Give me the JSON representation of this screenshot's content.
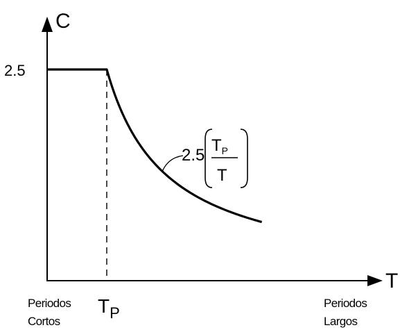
{
  "chart_data": {
    "type": "line",
    "title": "",
    "xlabel": "T",
    "ylabel": "C",
    "y_tick_label": "2.5",
    "plateau_value": 2.5,
    "x_tick": {
      "main": "T",
      "subscript": "P"
    },
    "curve_formula": {
      "coefficient": "2.5",
      "numerator_main": "T",
      "numerator_subscript": "P",
      "denominator": "T"
    },
    "left_note": [
      "Periodos",
      "Cortos"
    ],
    "right_note": [
      "Periodos",
      "Largos"
    ],
    "series": [
      {
        "x": [
          0,
          1,
          1.1,
          1.25,
          1.5,
          1.75,
          2,
          2.5,
          3,
          3.5,
          3.6
        ],
        "y": [
          2.5,
          2.5,
          2.27,
          2.0,
          1.67,
          1.43,
          1.25,
          1.0,
          0.83,
          0.71,
          0.69
        ]
      }
    ],
    "xlim": [
      0,
      4.2
    ],
    "ylim": [
      0,
      3.2
    ],
    "grid": false,
    "colors": {
      "line": "#000000",
      "axis": "#000000",
      "background": "#ffffff"
    }
  }
}
